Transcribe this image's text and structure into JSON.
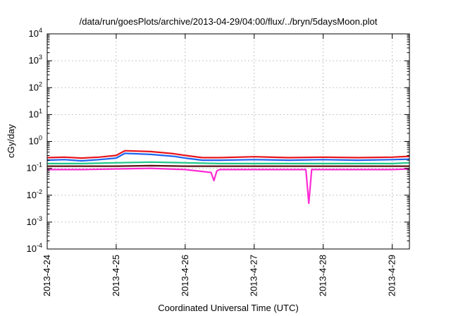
{
  "chart_data": {
    "type": "line",
    "title": "/data/run/goesPlots/archive/2013-04-29/04:00/flux/../bryn/5daysMoon.plot",
    "xlabel": "Coordinated Universal Time (UTC)",
    "ylabel": "cGy/day",
    "yscale": "log",
    "ylim": [
      0.0001,
      10000
    ],
    "xlim": [
      "2013-04-24",
      "2013-04-29 06:00"
    ],
    "grid": true,
    "x_ticks": [
      "2013-4-24",
      "2013-4-25",
      "2013-4-26",
      "2013-4-27",
      "2013-4-28",
      "2013-4-29"
    ],
    "y_ticks": [
      {
        "base": "10",
        "exp": "-4",
        "value": 0.0001
      },
      {
        "base": "10",
        "exp": "-3",
        "value": 0.001
      },
      {
        "base": "10",
        "exp": "-2",
        "value": 0.01
      },
      {
        "base": "10",
        "exp": "-1",
        "value": 0.1
      },
      {
        "base": "10",
        "exp": "0",
        "value": 1
      },
      {
        "base": "10",
        "exp": "1",
        "value": 10
      },
      {
        "base": "10",
        "exp": "2",
        "value": 100
      },
      {
        "base": "10",
        "exp": "3",
        "value": 1000
      },
      {
        "base": "10",
        "exp": "4",
        "value": 10000
      }
    ],
    "series": [
      {
        "color": "#e8131b",
        "points": [
          [
            "2013-04-24 00:00",
            0.25
          ],
          [
            "2013-04-24 06:00",
            0.26
          ],
          [
            "2013-04-24 12:00",
            0.24
          ],
          [
            "2013-04-24 18:00",
            0.26
          ],
          [
            "2013-04-25 00:00",
            0.3
          ],
          [
            "2013-04-25 03:00",
            0.45
          ],
          [
            "2013-04-25 12:00",
            0.42
          ],
          [
            "2013-04-25 20:00",
            0.35
          ],
          [
            "2013-04-26 00:00",
            0.3
          ],
          [
            "2013-04-26 06:00",
            0.25
          ],
          [
            "2013-04-26 12:00",
            0.25
          ],
          [
            "2013-04-27 00:00",
            0.27
          ],
          [
            "2013-04-27 12:00",
            0.25
          ],
          [
            "2013-04-28 00:00",
            0.26
          ],
          [
            "2013-04-28 12:00",
            0.25
          ],
          [
            "2013-04-29 00:00",
            0.26
          ],
          [
            "2013-04-29 06:00",
            0.28
          ]
        ]
      },
      {
        "color": "#1e64f0",
        "points": [
          [
            "2013-04-24 00:00",
            0.2
          ],
          [
            "2013-04-24 06:00",
            0.21
          ],
          [
            "2013-04-24 12:00",
            0.19
          ],
          [
            "2013-04-24 18:00",
            0.21
          ],
          [
            "2013-04-25 00:00",
            0.24
          ],
          [
            "2013-04-25 03:00",
            0.36
          ],
          [
            "2013-04-25 12:00",
            0.33
          ],
          [
            "2013-04-25 20:00",
            0.28
          ],
          [
            "2013-04-26 00:00",
            0.24
          ],
          [
            "2013-04-26 06:00",
            0.2
          ],
          [
            "2013-04-26 12:00",
            0.2
          ],
          [
            "2013-04-27 00:00",
            0.21
          ],
          [
            "2013-04-27 12:00",
            0.2
          ],
          [
            "2013-04-28 00:00",
            0.21
          ],
          [
            "2013-04-28 12:00",
            0.2
          ],
          [
            "2013-04-29 00:00",
            0.21
          ],
          [
            "2013-04-29 06:00",
            0.22
          ]
        ]
      },
      {
        "color": "#1fc88a",
        "points": [
          [
            "2013-04-24 00:00",
            0.15
          ],
          [
            "2013-04-24 12:00",
            0.15
          ],
          [
            "2013-04-25 00:00",
            0.16
          ],
          [
            "2013-04-25 12:00",
            0.17
          ],
          [
            "2013-04-26 00:00",
            0.16
          ],
          [
            "2013-04-26 12:00",
            0.15
          ],
          [
            "2013-04-27 00:00",
            0.15
          ],
          [
            "2013-04-28 00:00",
            0.15
          ],
          [
            "2013-04-29 00:00",
            0.15
          ],
          [
            "2013-04-29 06:00",
            0.16
          ]
        ]
      },
      {
        "color": "#5a1010",
        "points": [
          [
            "2013-04-24 00:00",
            0.12
          ],
          [
            "2013-04-25 00:00",
            0.12
          ],
          [
            "2013-04-25 12:00",
            0.125
          ],
          [
            "2013-04-26 00:00",
            0.12
          ],
          [
            "2013-04-27 00:00",
            0.12
          ],
          [
            "2013-04-28 00:00",
            0.12
          ],
          [
            "2013-04-29 00:00",
            0.12
          ],
          [
            "2013-04-29 06:00",
            0.12
          ]
        ]
      },
      {
        "color": "#ff2ad4",
        "points": [
          [
            "2013-04-24 00:00",
            0.09
          ],
          [
            "2013-04-24 12:00",
            0.09
          ],
          [
            "2013-04-25 00:00",
            0.095
          ],
          [
            "2013-04-25 12:00",
            0.1
          ],
          [
            "2013-04-26 00:00",
            0.09
          ],
          [
            "2013-04-26 09:00",
            0.07
          ],
          [
            "2013-04-26 10:00",
            0.035
          ],
          [
            "2013-04-26 11:00",
            0.08
          ],
          [
            "2013-04-26 12:00",
            0.09
          ],
          [
            "2013-04-27 00:00",
            0.09
          ],
          [
            "2013-04-27 18:00",
            0.09
          ],
          [
            "2013-04-27 19:00",
            0.005
          ],
          [
            "2013-04-27 20:00",
            0.09
          ],
          [
            "2013-04-28 00:00",
            0.09
          ],
          [
            "2013-04-29 00:00",
            0.09
          ],
          [
            "2013-04-29 06:00",
            0.095
          ]
        ]
      }
    ]
  }
}
